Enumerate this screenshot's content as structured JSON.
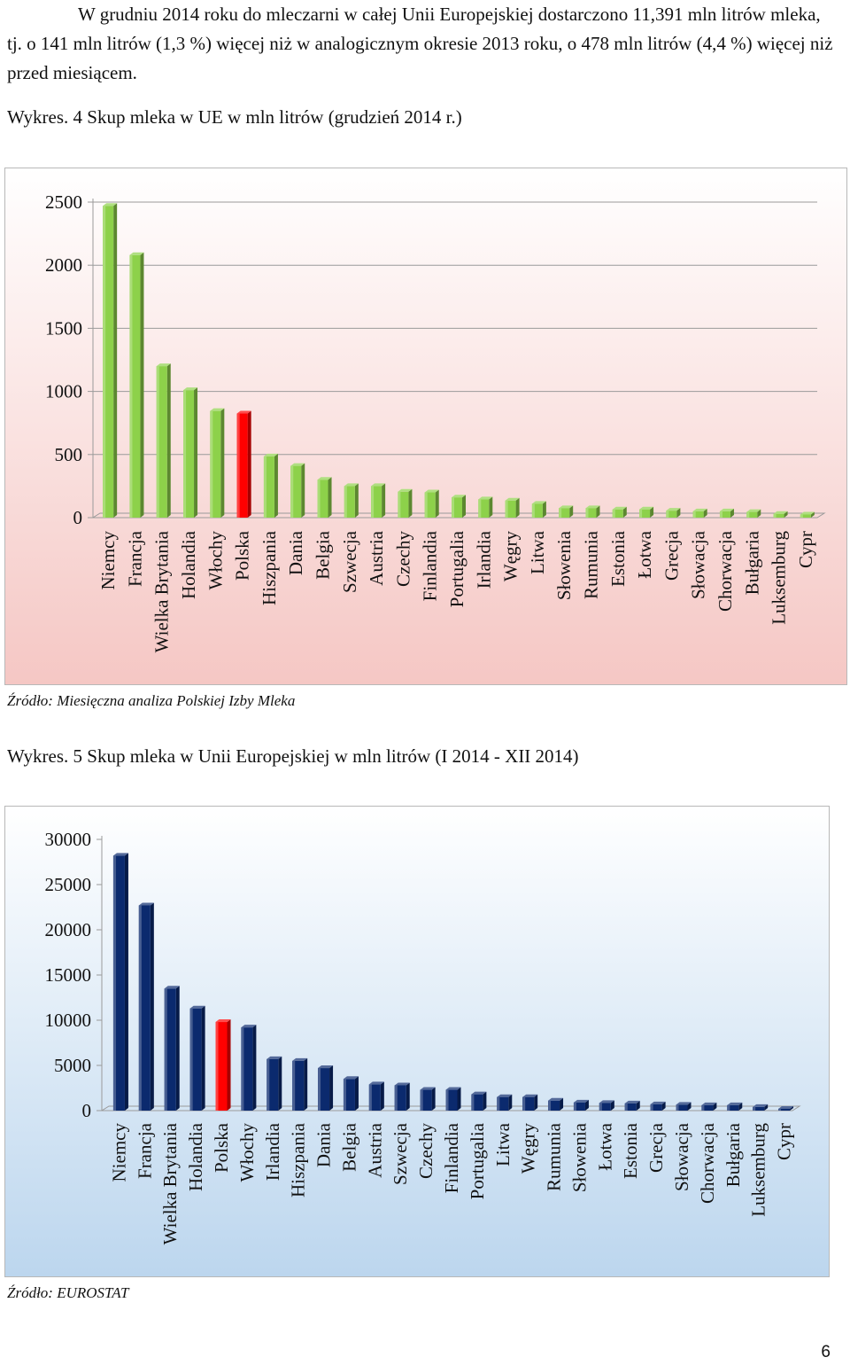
{
  "intro_text": "W grudniu 2014 roku do mleczarni w całej Unii Europejskiej dostarczono 11,391 mln litrów mleka, tj. o 141 mln litrów (1,3 %) więcej niż w analogicznym okresie 2013 roku, o 478 mln litrów (4,4 %) więcej niż przed miesiącem.",
  "chart1": {
    "caption": "Wykres. 4 Skup mleka w UE w mln litrów (grudzień 2014 r.)",
    "source_label": "Źródło:",
    "source_text": "Miesięczna analiza Polskiej Izby Mleka"
  },
  "chart2": {
    "caption": "Wykres. 5 Skup mleka w Unii Europejskiej w mln litrów (I 2014 - XII 2014)",
    "source_label": "Źródło:",
    "source_text": "EUROSTAT"
  },
  "page_number": "6",
  "colors": {
    "bar_green": "#8dd14a",
    "bar_blue": "#0b2a6e",
    "bar_highlight": "#ff0000",
    "chart1_bg_top": "#ffffff",
    "chart1_bg_bottom": "#f5c7c4",
    "chart2_bg_top": "#ffffff",
    "chart2_bg_bottom": "#bcd6ee"
  },
  "chart_data": [
    {
      "type": "bar",
      "title": "",
      "xlabel": "",
      "ylabel": "",
      "ylim": [
        0,
        2500
      ],
      "yticks": [
        0,
        500,
        1000,
        1500,
        2000,
        2500
      ],
      "highlight": "Polska",
      "categories": [
        "Niemcy",
        "Francja",
        "Wielka Brytania",
        "Holandia",
        "Włochy",
        "Polska",
        "Hiszpania",
        "Dania",
        "Belgia",
        "Szwecja",
        "Austria",
        "Czechy",
        "Finlandia",
        "Portugalia",
        "Irlandia",
        "Węgry",
        "Litwa",
        "Słowenia",
        "Rumunia",
        "Estonia",
        "Łotwa",
        "Grecja",
        "Słowacja",
        "Chorwacja",
        "Bułgaria",
        "Luksemburg",
        "Cypr"
      ],
      "values": [
        2470,
        2080,
        1200,
        1010,
        845,
        825,
        485,
        410,
        300,
        250,
        250,
        205,
        200,
        160,
        145,
        135,
        110,
        75,
        75,
        65,
        65,
        55,
        50,
        50,
        45,
        30,
        25
      ],
      "grid": true,
      "legend": "none"
    },
    {
      "type": "bar",
      "title": "",
      "xlabel": "",
      "ylabel": "",
      "ylim": [
        0,
        30000
      ],
      "yticks": [
        0,
        5000,
        10000,
        15000,
        20000,
        25000,
        30000
      ],
      "highlight": "Polska",
      "categories": [
        "Niemcy",
        "Francja",
        "Wielka Brytania",
        "Holandia",
        "Polska",
        "Włochy",
        "Irlandia",
        "Hiszpania",
        "Dania",
        "Belgia",
        "Austria",
        "Szwecja",
        "Czechy",
        "Finlandia",
        "Portugalia",
        "Litwa",
        "Węgry",
        "Rumunia",
        "Słowenia",
        "Łotwa",
        "Estonia",
        "Grecja",
        "Słowacja",
        "Chorwacja",
        "Bułgaria",
        "Luksemburg",
        "Cypr"
      ],
      "values": [
        28200,
        22700,
        13500,
        11300,
        9800,
        9200,
        5700,
        5500,
        4700,
        3500,
        2900,
        2800,
        2300,
        2300,
        1800,
        1500,
        1500,
        1100,
        900,
        850,
        800,
        700,
        650,
        600,
        600,
        400,
        200
      ],
      "grid": false,
      "legend": "none"
    }
  ]
}
